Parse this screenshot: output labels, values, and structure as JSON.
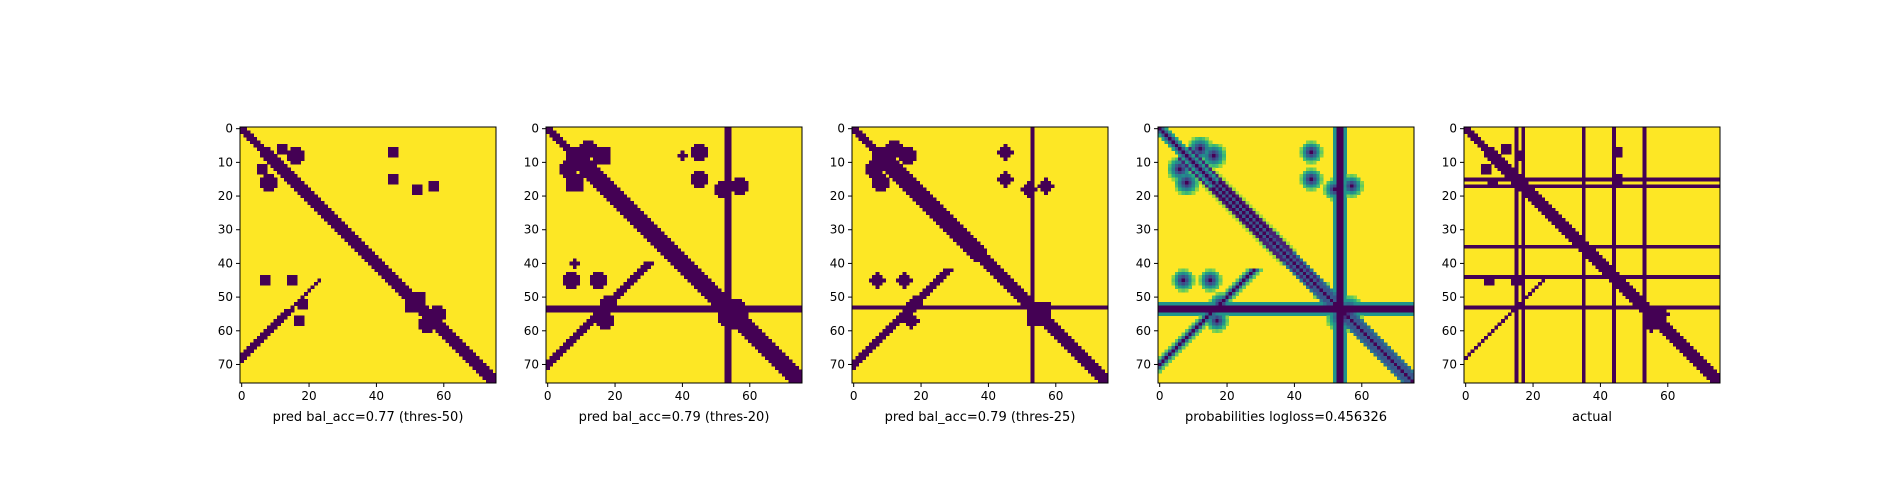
{
  "figure": {
    "background": "#ffffff"
  },
  "colormap": {
    "name": "viridis",
    "low": "#440154",
    "high": "#fde725"
  },
  "chart_data": [
    {
      "type": "heatmap",
      "title": "pred bal_acc=0.77 (thres-50)",
      "matrix_size": 76,
      "xticks": [
        0,
        20,
        40,
        60
      ],
      "yticks": [
        0,
        10,
        20,
        30,
        40,
        50,
        60,
        70
      ],
      "values": "binary",
      "features": {
        "diagonal_halfwidth": 1.6,
        "bands": [
          [
            6,
            36,
            2.0
          ],
          [
            36,
            75,
            1.5
          ],
          [
            16,
            30,
            1.2
          ]
        ],
        "blobs": [
          [
            8,
            16,
            3.5
          ],
          [
            12,
            6,
            3.0
          ],
          [
            15,
            45,
            2.5
          ],
          [
            45,
            7,
            2.5
          ],
          [
            18,
            52,
            2.5
          ],
          [
            57,
            17,
            2.5
          ],
          [
            33,
            33,
            3.0
          ],
          [
            55,
            58,
            3.5
          ],
          [
            53,
            50,
            2.5
          ]
        ],
        "antidiagonals": [
          [
            55,
            68,
            1.0
          ],
          [
            64,
            68,
            1.2
          ]
        ]
      }
    },
    {
      "type": "heatmap",
      "title": "pred bal_acc=0.79 (thres-20)",
      "matrix_size": 76,
      "xticks": [
        0,
        20,
        40,
        60
      ],
      "yticks": [
        0,
        10,
        20,
        30,
        40,
        50,
        60,
        70
      ],
      "values": "binary",
      "features": {
        "diagonal_halfwidth": 2.3,
        "bands": [
          [
            6,
            36,
            2.6
          ],
          [
            36,
            75,
            2.2
          ],
          [
            16,
            30,
            1.8
          ],
          [
            22,
            45,
            1.4
          ]
        ],
        "blobs": [
          [
            8,
            16,
            4.5
          ],
          [
            12,
            6,
            4.0
          ],
          [
            15,
            45,
            3.5
          ],
          [
            45,
            7,
            3.5
          ],
          [
            18,
            52,
            3.5
          ],
          [
            57,
            17,
            3.5
          ],
          [
            33,
            33,
            3.5
          ],
          [
            54,
            56,
            5.0
          ],
          [
            48,
            48,
            3.0
          ],
          [
            8,
            40,
            2.0
          ]
        ],
        "antidiagonals": [
          [
            50,
            70,
            1.6
          ],
          [
            64,
            70,
            1.6
          ]
        ],
        "lines": [
          [
            53,
            1.0
          ],
          [
            54,
            1.0
          ]
        ]
      }
    },
    {
      "type": "heatmap",
      "title": "pred bal_acc=0.79 (thres-25)",
      "matrix_size": 76,
      "xticks": [
        0,
        20,
        40,
        60
      ],
      "yticks": [
        0,
        10,
        20,
        30,
        40,
        50,
        60,
        70
      ],
      "values": "binary",
      "features": {
        "diagonal_halfwidth": 2.1,
        "bands": [
          [
            6,
            36,
            2.4
          ],
          [
            36,
            75,
            2.0
          ],
          [
            16,
            30,
            1.6
          ],
          [
            22,
            45,
            1.2
          ]
        ],
        "blobs": [
          [
            8,
            16,
            4.2
          ],
          [
            12,
            6,
            3.8
          ],
          [
            15,
            45,
            3.2
          ],
          [
            45,
            7,
            3.2
          ],
          [
            18,
            52,
            3.2
          ],
          [
            57,
            17,
            3.2
          ],
          [
            33,
            33,
            3.3
          ],
          [
            54,
            56,
            4.6
          ],
          [
            48,
            48,
            2.8
          ]
        ],
        "antidiagonals": [
          [
            52,
            70,
            1.4
          ],
          [
            64,
            70,
            1.4
          ]
        ],
        "lines": [
          [
            53,
            0.8
          ]
        ]
      }
    },
    {
      "type": "heatmap",
      "title": "probabilities logloss=0.456326",
      "matrix_size": 76,
      "xticks": [
        0,
        20,
        40,
        60
      ],
      "yticks": [
        0,
        10,
        20,
        30,
        40,
        50,
        60,
        70
      ],
      "values": "continuous",
      "features": {
        "diagonal_halfwidth": 2.5,
        "bands": [
          [
            6,
            36,
            2.8
          ],
          [
            36,
            75,
            2.4
          ],
          [
            16,
            30,
            2.0
          ],
          [
            22,
            45,
            1.8
          ]
        ],
        "blobs": [
          [
            8,
            16,
            4.0
          ],
          [
            12,
            6,
            4.0
          ],
          [
            15,
            45,
            3.6
          ],
          [
            45,
            7,
            3.6
          ],
          [
            18,
            52,
            3.6
          ],
          [
            57,
            17,
            3.6
          ],
          [
            33,
            33,
            3.5
          ],
          [
            54,
            56,
            5.0
          ],
          [
            48,
            48,
            3.2
          ]
        ],
        "antidiagonals": [
          [
            52,
            70,
            2.0
          ],
          [
            64,
            70,
            2.0
          ]
        ],
        "lines": [
          [
            53,
            1.5
          ],
          [
            54,
            1.5
          ]
        ]
      }
    },
    {
      "type": "heatmap",
      "title": "actual",
      "matrix_size": 76,
      "xticks": [
        0,
        20,
        40,
        60
      ],
      "yticks": [
        0,
        10,
        20,
        30,
        40,
        50,
        60,
        70
      ],
      "values": "binary",
      "features": {
        "diagonal_halfwidth": 1.4,
        "bands": [
          [
            6,
            36,
            1.6
          ],
          [
            36,
            75,
            1.4
          ],
          [
            16,
            30,
            1.0
          ]
        ],
        "blobs": [
          [
            8,
            16,
            3.0
          ],
          [
            12,
            6,
            3.0
          ],
          [
            15,
            45,
            2.2
          ],
          [
            45,
            7,
            2.2
          ],
          [
            33,
            33,
            3.0
          ],
          [
            55,
            58,
            3.2
          ]
        ],
        "antidiagonals": [
          [
            55,
            68,
            0.9
          ],
          [
            64,
            68,
            1.0
          ]
        ],
        "lines": [
          [
            15,
            0.6
          ],
          [
            17,
            0.6
          ],
          [
            35,
            0.6
          ],
          [
            44,
            0.6
          ],
          [
            53,
            0.6
          ]
        ]
      }
    }
  ]
}
